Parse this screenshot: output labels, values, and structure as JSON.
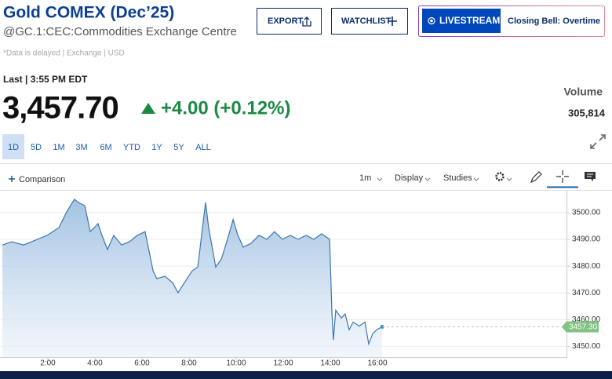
{
  "header": {
    "title": "Gold COMEX (Dec’25)",
    "subtitle": "@GC.1:CEC:Commodities Exchange Centre",
    "buttons": [
      "EXPORT",
      "WATCHLIST"
    ],
    "livestream": "LIVESTREAM",
    "show": "Closing Bell: Overtime",
    "notice": "*Data is delayed | Exchange | USD"
  },
  "quote": {
    "last": "Last | 3:55 PM EDT",
    "price": "3,457.70",
    "change": "+4.00 (+0.12%)",
    "volume_label": "Volume",
    "volume": "305,814"
  },
  "ranges": [
    "1D",
    "5D",
    "1M",
    "3M",
    "6M",
    "YTD",
    "1Y",
    "5Y",
    "ALL"
  ],
  "toolbar": {
    "comparison": "Comparison",
    "interval": "1m",
    "display": "Display",
    "studies": "Studies"
  },
  "chart_data": {
    "type": "area",
    "color": "#3d76b0",
    "x": [
      0.07,
      0.47,
      0.97,
      1.47,
      1.97,
      2.47,
      2.8,
      3.13,
      3.3,
      3.57,
      3.8,
      3.97,
      4.13,
      4.3,
      4.53,
      4.8,
      5.13,
      5.47,
      5.8,
      6.13,
      6.3,
      6.47,
      6.63,
      6.97,
      7.3,
      7.53,
      7.8,
      8.13,
      8.37,
      8.57,
      8.7,
      8.83,
      9.13,
      9.37,
      9.63,
      9.87,
      10.07,
      10.3,
      10.63,
      10.97,
      11.3,
      11.63,
      11.97,
      12.3,
      12.63,
      12.97,
      13.3,
      13.63,
      13.97,
      14.07,
      14.13,
      14.23,
      14.47,
      14.63,
      14.8,
      14.97,
      15.23,
      15.47,
      15.63,
      15.8,
      15.97,
      16.2
    ],
    "values": [
      3487.9,
      3489.1,
      3487.9,
      3489.7,
      3491.5,
      3494.4,
      3500.3,
      3505.0,
      3503.8,
      3502.6,
      3492.9,
      3494.4,
      3495.9,
      3491.5,
      3486.2,
      3491.5,
      3487.9,
      3489.1,
      3491.5,
      3492.9,
      3485.6,
      3478.2,
      3475.3,
      3476.2,
      3473.8,
      3470.0,
      3473.8,
      3478.2,
      3479.7,
      3494.4,
      3503.8,
      3494.4,
      3479.7,
      3482.6,
      3490.0,
      3497.4,
      3491.5,
      3487.1,
      3488.5,
      3491.5,
      3490.0,
      3492.9,
      3490.0,
      3491.5,
      3490.0,
      3491.5,
      3490.0,
      3492.1,
      3490.0,
      3462.1,
      3452.4,
      3463.5,
      3460.6,
      3462.1,
      3456.2,
      3459.1,
      3457.6,
      3459.1,
      3450.9,
      3454.7,
      3456.2,
      3457.3
    ],
    "xlim": [
      0,
      24
    ],
    "ylim": [
      3446,
      3508.5
    ],
    "xticks": [
      {
        "value": 2,
        "label": "2:00"
      },
      {
        "value": 4,
        "label": "4:00"
      },
      {
        "value": 6,
        "label": "6:00"
      },
      {
        "value": 8,
        "label": "8:00"
      },
      {
        "value": 10,
        "label": "10:00"
      },
      {
        "value": 12,
        "label": "12:00"
      },
      {
        "value": 14,
        "label": "14:00"
      },
      {
        "value": 16,
        "label": "16:00"
      }
    ],
    "yticks": [
      {
        "value": 3450,
        "label": "3450.00"
      },
      {
        "value": 3460,
        "label": "3460.00"
      },
      {
        "value": 3470,
        "label": "3470.00"
      },
      {
        "value": 3480,
        "label": "3480.00"
      },
      {
        "value": 3490,
        "label": "3490.00"
      },
      {
        "value": 3500,
        "label": "3500.00"
      }
    ],
    "grid": true,
    "marker": {
      "value": 3457.3,
      "label": "3457.30"
    }
  }
}
